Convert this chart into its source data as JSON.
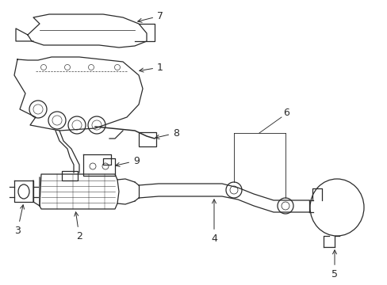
{
  "bg_color": "#ffffff",
  "line_color": "#2a2a2a",
  "label_color": "#000000",
  "fontsize": 9,
  "figsize": [
    4.89,
    3.6
  ],
  "dpi": 100,
  "xlim": [
    0,
    489
  ],
  "ylim": [
    0,
    360
  ]
}
